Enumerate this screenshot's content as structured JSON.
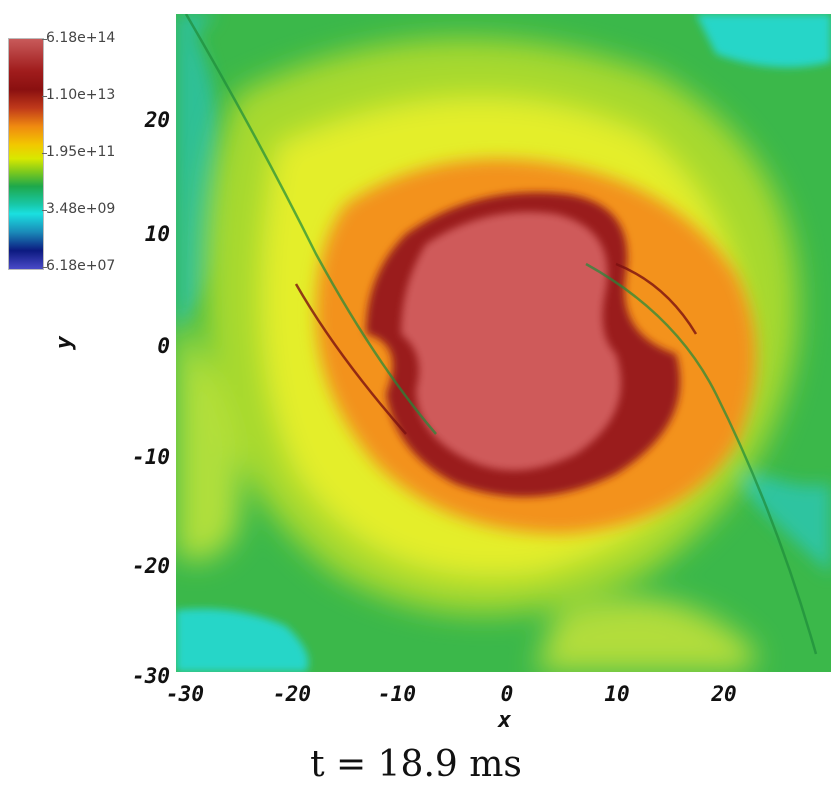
{
  "colorbar": {
    "labels": [
      "6.18e+14",
      "1.10e+13",
      "1.95e+11",
      "3.48e+09",
      "6.18e+07"
    ],
    "colors": [
      "#c85a5a",
      "#8a1010",
      "#f08a10",
      "#d8e800",
      "#1ea84a",
      "#1ae0e0",
      "#0c1a80",
      "#4a4ac8"
    ]
  },
  "axes": {
    "xlabel": "x",
    "ylabel": "y",
    "x_ticks": [
      "-30",
      "-20",
      "-10",
      "0",
      "10",
      "20"
    ],
    "y_ticks": [
      "20",
      "10",
      "0",
      "-10",
      "-20",
      "-30"
    ]
  },
  "caption": "t = 18.9 ms",
  "palette": {
    "background_green": "#3bb84a",
    "yellow": "#e6ef2a",
    "orange": "#f3921a",
    "dark_red": "#9a1c1c",
    "core": "#cf5a5a",
    "cyan": "#25d6c8"
  }
}
